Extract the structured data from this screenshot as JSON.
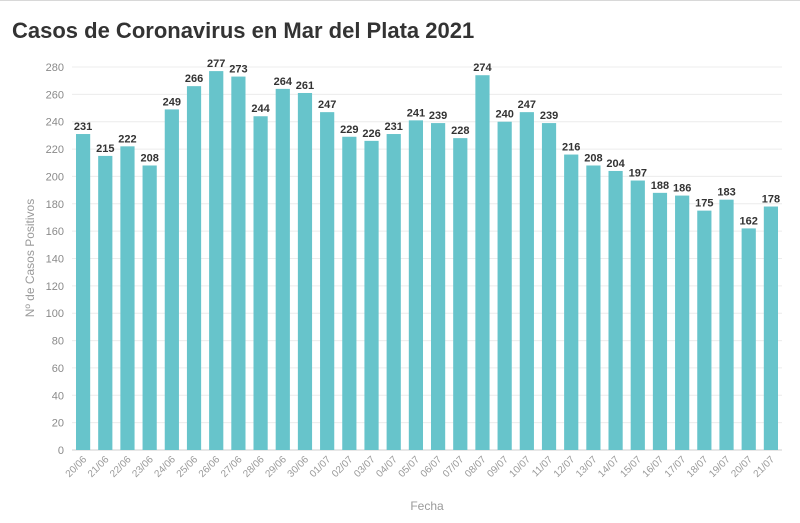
{
  "chart_data": {
    "type": "bar",
    "title": "Casos de Coronavirus en Mar del Plata 2021",
    "xlabel": "Fecha",
    "ylabel": "Nº de Casos Positivos",
    "ylim": [
      0,
      280
    ],
    "yticks": [
      0,
      20,
      40,
      60,
      80,
      100,
      120,
      140,
      160,
      180,
      200,
      220,
      240,
      260,
      280
    ],
    "grid": true,
    "color": "#67c4cb",
    "categories": [
      "20/06",
      "21/06",
      "22/06",
      "23/06",
      "24/06",
      "25/06",
      "26/06",
      "27/06",
      "28/06",
      "29/06",
      "30/06",
      "01/07",
      "02/07",
      "03/07",
      "04/07",
      "05/07",
      "06/07",
      "07/07",
      "08/07",
      "09/07",
      "10/07",
      "11/07",
      "12/07",
      "13/07",
      "14/07",
      "15/07",
      "16/07",
      "17/07",
      "18/07",
      "19/07",
      "20/07",
      "21/07"
    ],
    "values": [
      231,
      215,
      222,
      208,
      249,
      266,
      277,
      273,
      244,
      264,
      261,
      247,
      229,
      226,
      231,
      241,
      239,
      228,
      274,
      240,
      247,
      239,
      216,
      208,
      204,
      197,
      188,
      186,
      175,
      183,
      162,
      178
    ]
  }
}
